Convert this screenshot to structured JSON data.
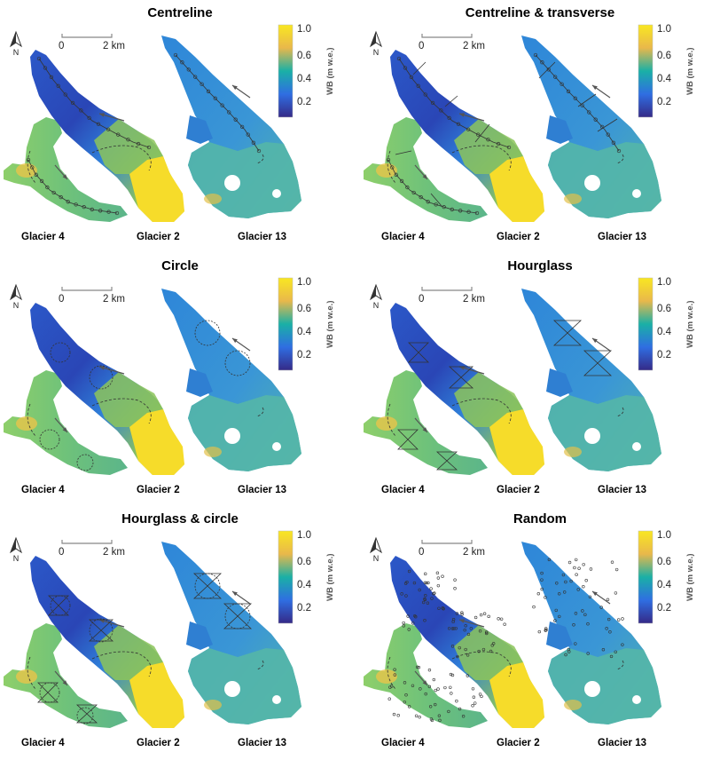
{
  "panels": [
    {
      "title": "Centreline",
      "pattern": "centreline"
    },
    {
      "title": "Centreline & transverse",
      "pattern": "centreline_transverse"
    },
    {
      "title": "Circle",
      "pattern": "circle"
    },
    {
      "title": "Hourglass",
      "pattern": "hourglass"
    },
    {
      "title": "Hourglass & circle",
      "pattern": "hourglass_circle"
    },
    {
      "title": "Random",
      "pattern": "random"
    }
  ],
  "glacier_labels": [
    "Glacier 4",
    "Glacier 2",
    "Glacier 13"
  ],
  "scale_bar": {
    "start": "0",
    "end": "2 km"
  },
  "north_label": "N",
  "colorbar": {
    "label": "WB (m w.e.)",
    "ticks": [
      "1.0",
      "0.6",
      "0.4",
      "0.2"
    ],
    "colors": [
      "#f9e721",
      "#e9b84b",
      "#1ab0a6",
      "#2f6ee2",
      "#352a87"
    ]
  },
  "glacier_colors": {
    "glacier4": "#6fc27a",
    "glacier2_upper": "#2b58c8",
    "glacier2_lower": "#8cc45a",
    "glacier2_snout": "#f6dc2a",
    "glacier13_upper": "#2e86d8",
    "glacier13_lower": "#54b6a8"
  }
}
